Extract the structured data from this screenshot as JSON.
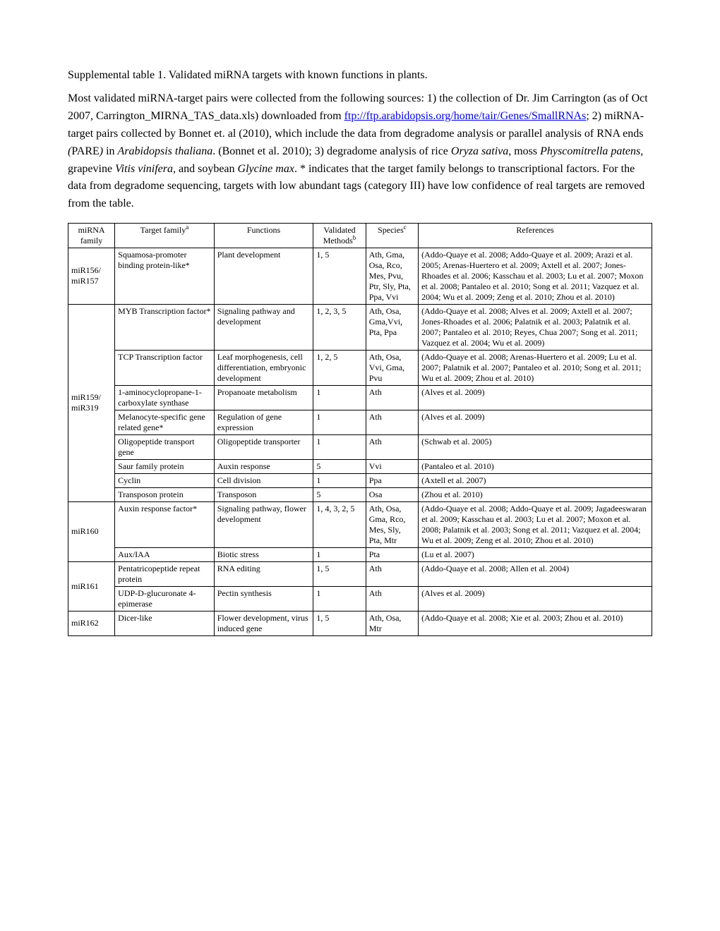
{
  "title": "Supplemental table 1. Validated miRNA targets with known functions in plants.",
  "intro_parts": {
    "p1": "Most validated miRNA-target pairs were collected from the following sources: 1) the collection of Dr. Jim Carrington (as of Oct 2007, Carrington_MIRNA_TAS_data.xls) downloaded from ",
    "link_text": "ftp://ftp.arabidopsis.org/home/tair/Genes/SmallRNAs",
    "p2": "; 2) miRNA-target pairs collected by Bonnet et. al (2010), which include the data from degradome analysis or parallel analysis of RNA ends ",
    "pare_open": "(",
    "pare": "PARE",
    "pare_close": ")",
    "p3": " in ",
    "ath": "Arabidopsis thaliana",
    "p4": ". (Bonnet et al. 2010); 3) degradome analysis of rice ",
    "osa": "Oryza sativa",
    "p5": ", moss ",
    "ppa": "Physcomitrella patens",
    "p6": ", grapevine ",
    "vvi": "Vitis vinifera",
    "p7": ", and soybean ",
    "gma": "Glycine max",
    "p8": ".  * indicates that the target family belongs to transcriptional factors. For the data from degradome sequencing, targets with low abundant tags (category III) have low confidence of real targets are removed from the table."
  },
  "headers": {
    "mirna": "miRNA family",
    "target_pre": "Target family",
    "target_sup": "a",
    "functions": "Functions",
    "methods_pre": "Validated Methods",
    "methods_sup": "b",
    "species_pre": "Species",
    "species_sup": "c",
    "references": "References"
  },
  "groups": [
    {
      "mirna": "miR156/ miR157",
      "rows": [
        {
          "target": "Squamosa-promoter binding protein-like*",
          "functions": "Plant development",
          "methods": "1, 5",
          "species": "Ath, Gma, Osa, Rco, Mes, Pvu, Ptr, Sly, Pta, Ppa, Vvi",
          "references": "(Addo-Quaye et al. 2008; Addo-Quaye et al. 2009; Arazi et al. 2005; Arenas-Huertero et al. 2009; Axtell et al. 2007; Jones-Rhoades et al. 2006; Kasschau et al. 2003; Lu et al. 2007; Moxon et al. 2008; Pantaleo et al. 2010; Song et al. 2011; Vazquez et al. 2004; Wu et al. 2009; Zeng et al. 2010; Zhou et al. 2010)"
        }
      ]
    },
    {
      "mirna": "miR159/ miR319",
      "rows": [
        {
          "target": "MYB Transcription factor*",
          "functions": "Signaling pathway and development",
          "methods": "1, 2, 3, 5",
          "species": "Ath, Osa, Gma,Vvi, Pta, Ppa",
          "references": "(Addo-Quaye et al. 2008; Alves et al. 2009; Axtell et al. 2007; Jones-Rhoades et al. 2006; Palatnik et al. 2003; Palatnik et al. 2007; Pantaleo et al. 2010; Reyes, Chua 2007; Song et al. 2011; Vazquez et al. 2004; Wu et al. 2009)"
        },
        {
          "target": "TCP Transcription factor",
          "functions": "Leaf morphogenesis, cell differentiation, embryonic development",
          "methods": "1, 2, 5",
          "species": "Ath, Osa, Vvi, Gma, Pvu",
          "references": "(Addo-Quaye et al. 2008; Arenas-Huertero et al. 2009; Lu et al. 2007; Palatnik et al. 2007; Pantaleo et al. 2010; Song et al. 2011; Wu et al. 2009; Zhou et al. 2010)"
        },
        {
          "target": "1-aminocyclopropane-1-carboxylate synthase",
          "functions": "Propanoate metabolism",
          "methods": "1",
          "species": "Ath",
          "references": "(Alves et al. 2009)"
        },
        {
          "target": "Melanocyte-specific gene related gene*",
          "functions": "Regulation of gene expression",
          "methods": "1",
          "species": "Ath",
          "references": "(Alves et al. 2009)"
        },
        {
          "target": "Oligopeptide transport gene",
          "functions": "Oligopeptide transporter",
          "methods": "1",
          "species": "Ath",
          "references": "(Schwab et al. 2005)"
        },
        {
          "target": "Saur family protein",
          "functions": "Auxin response",
          "methods": "5",
          "species": "Vvi",
          "references": "(Pantaleo et al. 2010)"
        },
        {
          "target": "Cyclin",
          "functions": "Cell division",
          "methods": "1",
          "species": "Ppa",
          "references": "(Axtell et al. 2007)"
        },
        {
          "target": "Transposon protein",
          "functions": "Transposon",
          "methods": "5",
          "species": "Osa",
          "references": "(Zhou et al. 2010)"
        }
      ]
    },
    {
      "mirna": "miR160",
      "rows": [
        {
          "target": "Auxin response factor*",
          "functions": "Signaling pathway, flower development",
          "methods": "1, 4, 3, 2, 5",
          "species": "Ath, Osa, Gma, Rco, Mes, Sly, Pta, Mtr",
          "references": "(Addo-Quaye et al. 2008; Addo-Quaye et al. 2009; Jagadeeswaran et al. 2009; Kasschau et al. 2003; Lu et al. 2007; Moxon et al. 2008; Palatnik et al. 2003; Song et al. 2011; Vazquez et al. 2004; Wu et al. 2009; Zeng et al. 2010; Zhou et al. 2010)"
        },
        {
          "target": "Aux/IAA",
          "functions": "Biotic stress",
          "methods": "1",
          "species": "Pta",
          "references": "(Lu et al. 2007)"
        }
      ]
    },
    {
      "mirna": "miR161",
      "rows": [
        {
          "target": "Pentatricopeptide repeat protein",
          "functions": "RNA editing",
          "methods": "1, 5",
          "species": "Ath",
          "references": "(Addo-Quaye et al. 2008; Allen et al. 2004)"
        },
        {
          "target": "UDP-D-glucuronate 4-epimerase",
          "functions": "Pectin synthesis",
          "methods": "1",
          "species": "Ath",
          "references": "(Alves et al. 2009)"
        }
      ]
    },
    {
      "mirna": "miR162",
      "rows": [
        {
          "target": "Dicer-like",
          "functions": "Flower development, virus induced gene",
          "methods": "1, 5",
          "species": "Ath, Osa, Mtr",
          "references": "(Addo-Quaye et al. 2008; Xie et al. 2003; Zhou et al. 2010)"
        }
      ]
    }
  ]
}
